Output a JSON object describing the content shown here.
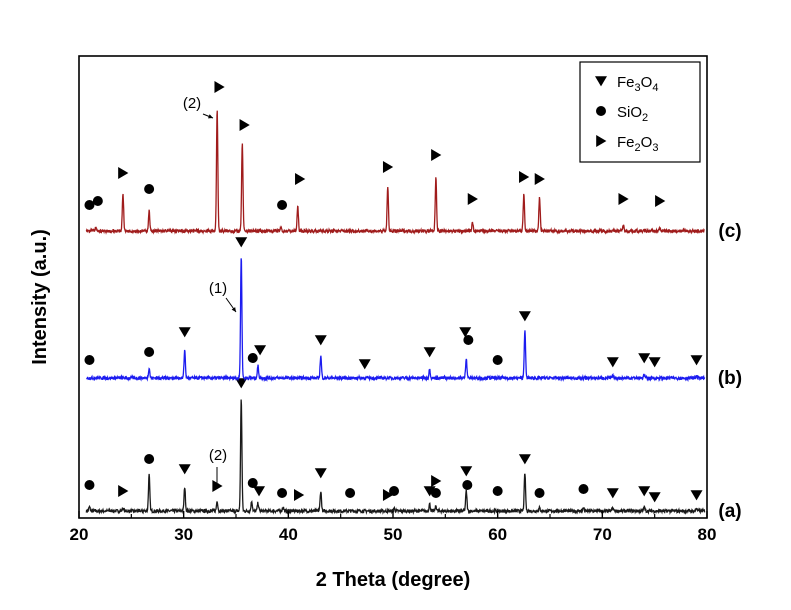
{
  "chart_data": {
    "type": "line",
    "xlabel": "2 Theta (degree)",
    "ylabel": "Intensity (a.u.)",
    "xlim": [
      20,
      80
    ],
    "xticks": [
      20,
      30,
      40,
      50,
      60,
      70,
      80
    ],
    "yticks_shown": false,
    "grid": false,
    "legend_position": "top-right",
    "legend": [
      {
        "marker": "triangle-down",
        "label_main": "Fe",
        "sub1": "3",
        "mid": "O",
        "sub2": "4"
      },
      {
        "marker": "circle",
        "label_main": "Si",
        "sub1": "",
        "mid": "O",
        "sub2": "2"
      },
      {
        "marker": "triangle-right",
        "label_main": "Fe",
        "sub1": "2",
        "mid": "O",
        "sub2": "3"
      }
    ],
    "series": [
      {
        "label": "(a)",
        "color": "#1a1a1a",
        "offset": 0,
        "peaks": [
          {
            "x": 21.0,
            "h": 4
          },
          {
            "x": 24.2,
            "h": 3
          },
          {
            "x": 26.7,
            "h": 36
          },
          {
            "x": 30.1,
            "h": 24
          },
          {
            "x": 33.2,
            "h": 10
          },
          {
            "x": 35.5,
            "h": 112
          },
          {
            "x": 36.5,
            "h": 10
          },
          {
            "x": 37.1,
            "h": 8
          },
          {
            "x": 39.5,
            "h": 4
          },
          {
            "x": 43.1,
            "h": 20
          },
          {
            "x": 50.1,
            "h": 3
          },
          {
            "x": 53.5,
            "h": 7
          },
          {
            "x": 54.1,
            "h": 5
          },
          {
            "x": 57.0,
            "h": 20
          },
          {
            "x": 62.6,
            "h": 38
          },
          {
            "x": 64.0,
            "h": 3
          },
          {
            "x": 68.2,
            "h": 3
          },
          {
            "x": 71.0,
            "h": 3
          },
          {
            "x": 74.0,
            "h": 4
          },
          {
            "x": 79.0,
            "h": 3
          }
        ],
        "markers": [
          {
            "x": 21.0,
            "type": "circle",
            "y": 18
          },
          {
            "x": 24.2,
            "type": "triangle-right",
            "y": 12
          },
          {
            "x": 26.7,
            "type": "circle",
            "y": 44
          },
          {
            "x": 30.1,
            "type": "triangle-down",
            "y": 34
          },
          {
            "x": 33.2,
            "type": "triangle-right",
            "y": 17
          },
          {
            "x": 35.5,
            "type": "triangle-down",
            "y": 120
          },
          {
            "x": 36.6,
            "type": "circle",
            "y": 20
          },
          {
            "x": 37.2,
            "type": "triangle-down",
            "y": 12
          },
          {
            "x": 39.4,
            "type": "circle",
            "y": 10
          },
          {
            "x": 41.0,
            "type": "triangle-right",
            "y": 8
          },
          {
            "x": 43.1,
            "type": "triangle-down",
            "y": 30
          },
          {
            "x": 45.9,
            "type": "circle",
            "y": 10
          },
          {
            "x": 49.5,
            "type": "triangle-right",
            "y": 8
          },
          {
            "x": 50.1,
            "type": "circle",
            "y": 12
          },
          {
            "x": 53.5,
            "type": "triangle-down",
            "y": 12
          },
          {
            "x": 54.1,
            "type": "triangle-right",
            "y": 22
          },
          {
            "x": 54.1,
            "type": "circle",
            "y": 10
          },
          {
            "x": 57.0,
            "type": "triangle-down",
            "y": 32
          },
          {
            "x": 57.1,
            "type": "circle",
            "y": 18
          },
          {
            "x": 60.0,
            "type": "circle",
            "y": 12
          },
          {
            "x": 62.6,
            "type": "triangle-down",
            "y": 44
          },
          {
            "x": 64.0,
            "type": "circle",
            "y": 10
          },
          {
            "x": 68.2,
            "type": "circle",
            "y": 14
          },
          {
            "x": 71.0,
            "type": "triangle-down",
            "y": 10
          },
          {
            "x": 74.0,
            "type": "triangle-down",
            "y": 12
          },
          {
            "x": 75.0,
            "type": "triangle-down",
            "y": 6
          },
          {
            "x": 79.0,
            "type": "triangle-down",
            "y": 8
          }
        ]
      },
      {
        "label": "(b)",
        "color": "#1c1cf0",
        "offset": 1,
        "peaks": [
          {
            "x": 26.7,
            "h": 10
          },
          {
            "x": 30.1,
            "h": 28
          },
          {
            "x": 35.5,
            "h": 122
          },
          {
            "x": 37.1,
            "h": 12
          },
          {
            "x": 43.1,
            "h": 22
          },
          {
            "x": 53.5,
            "h": 9
          },
          {
            "x": 57.0,
            "h": 20
          },
          {
            "x": 62.6,
            "h": 48
          },
          {
            "x": 71.0,
            "h": 2
          },
          {
            "x": 74.0,
            "h": 3
          },
          {
            "x": 79.0,
            "h": 2
          }
        ],
        "markers": [
          {
            "x": 21.0,
            "type": "circle",
            "y": 10
          },
          {
            "x": 26.7,
            "type": "circle",
            "y": 18
          },
          {
            "x": 30.1,
            "type": "triangle-down",
            "y": 38
          },
          {
            "x": 35.5,
            "type": "triangle-down",
            "y": 128
          },
          {
            "x": 36.6,
            "type": "circle",
            "y": 12
          },
          {
            "x": 37.3,
            "type": "triangle-down",
            "y": 20
          },
          {
            "x": 43.1,
            "type": "triangle-down",
            "y": 30
          },
          {
            "x": 47.3,
            "type": "triangle-down",
            "y": 6
          },
          {
            "x": 53.5,
            "type": "triangle-down",
            "y": 18
          },
          {
            "x": 56.9,
            "type": "triangle-down",
            "y": 38
          },
          {
            "x": 57.2,
            "type": "circle",
            "y": 30
          },
          {
            "x": 60.0,
            "type": "circle",
            "y": 10
          },
          {
            "x": 62.6,
            "type": "triangle-down",
            "y": 54
          },
          {
            "x": 71.0,
            "type": "triangle-down",
            "y": 8
          },
          {
            "x": 74.0,
            "type": "triangle-down",
            "y": 12
          },
          {
            "x": 75.0,
            "type": "triangle-down",
            "y": 8
          },
          {
            "x": 79.0,
            "type": "triangle-down",
            "y": 10
          }
        ]
      },
      {
        "label": "(c)",
        "color": "#a01c1c",
        "offset": 2,
        "peaks": [
          {
            "x": 21.6,
            "h": 3
          },
          {
            "x": 24.2,
            "h": 38
          },
          {
            "x": 26.7,
            "h": 20
          },
          {
            "x": 33.2,
            "h": 122
          },
          {
            "x": 35.6,
            "h": 88
          },
          {
            "x": 39.3,
            "h": 3
          },
          {
            "x": 40.9,
            "h": 24
          },
          {
            "x": 49.5,
            "h": 44
          },
          {
            "x": 54.1,
            "h": 54
          },
          {
            "x": 57.6,
            "h": 8
          },
          {
            "x": 62.5,
            "h": 36
          },
          {
            "x": 64.0,
            "h": 34
          },
          {
            "x": 72.0,
            "h": 6
          },
          {
            "x": 75.5,
            "h": 3
          }
        ],
        "markers": [
          {
            "x": 21.0,
            "type": "circle",
            "y": 18
          },
          {
            "x": 21.8,
            "type": "circle",
            "y": 22
          },
          {
            "x": 24.2,
            "type": "triangle-right",
            "y": 50
          },
          {
            "x": 26.7,
            "type": "circle",
            "y": 34
          },
          {
            "x": 33.4,
            "type": "triangle-right",
            "y": 136
          },
          {
            "x": 35.8,
            "type": "triangle-right",
            "y": 98
          },
          {
            "x": 39.4,
            "type": "circle",
            "y": 18
          },
          {
            "x": 41.1,
            "type": "triangle-right",
            "y": 44
          },
          {
            "x": 49.5,
            "type": "triangle-right",
            "y": 56
          },
          {
            "x": 54.1,
            "type": "triangle-right",
            "y": 68
          },
          {
            "x": 57.6,
            "type": "triangle-right",
            "y": 24
          },
          {
            "x": 62.5,
            "type": "triangle-right",
            "y": 46
          },
          {
            "x": 64.0,
            "type": "triangle-right",
            "y": 44
          },
          {
            "x": 72.0,
            "type": "triangle-right",
            "y": 24
          },
          {
            "x": 75.5,
            "type": "triangle-right",
            "y": 22
          }
        ]
      }
    ],
    "annotations": [
      {
        "text": "(2)",
        "series": 2,
        "x": 33.2
      },
      {
        "text": "(1)",
        "series": 1,
        "x": 35.5
      },
      {
        "text": "(2)",
        "series": 0,
        "x": 33.2
      }
    ]
  }
}
